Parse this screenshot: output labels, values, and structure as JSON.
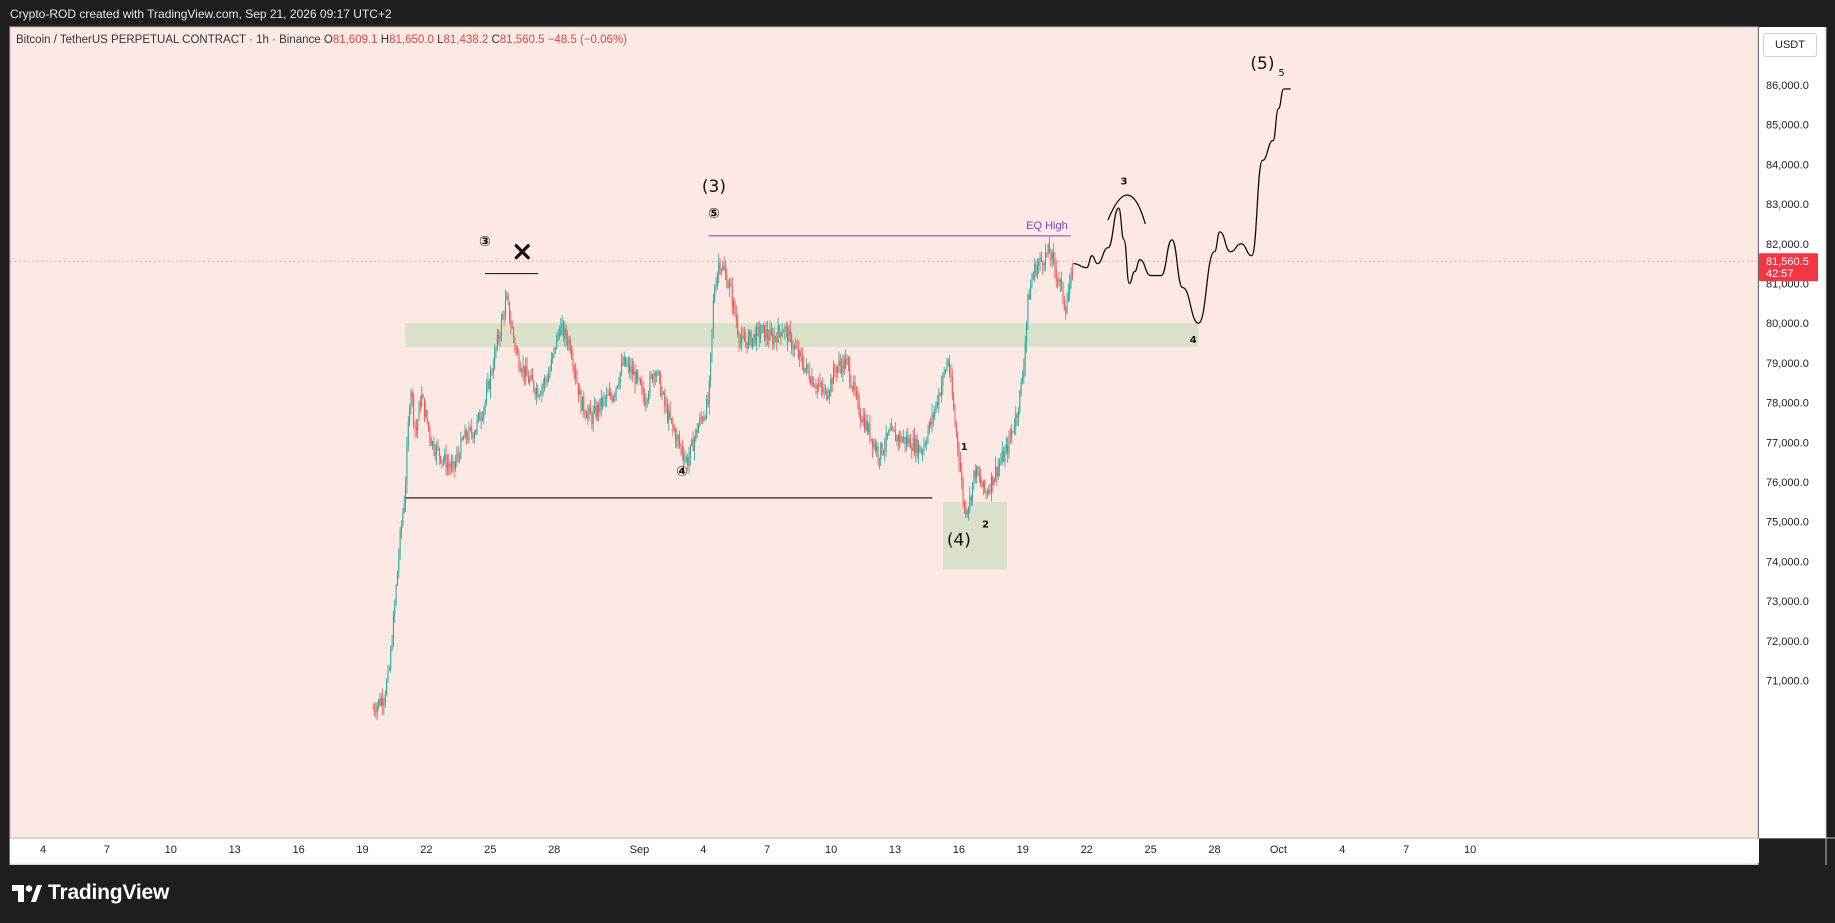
{
  "header": {
    "credit": "Crypto-ROD created with TradingView.com, Sep 21, 2026 09:17 UTC+2"
  },
  "legend": {
    "symbol": "Bitcoin / TetherUS PERPETUAL CONTRACT · 1h · Binance",
    "open_label": "O",
    "open": "81,609.1",
    "high_label": "H",
    "high": "81,650.0",
    "low_label": "L",
    "low": "81,438.2",
    "close_label": "C",
    "close": "81,560.5",
    "change": "−48.5 (−0.06%)"
  },
  "currency_button": "USDT",
  "price_tag": {
    "price": "81,560.5",
    "countdown": "42:57"
  },
  "footer": {
    "brand": "TradingView"
  },
  "colors": {
    "background": "#fde9e4",
    "candle_up": "#26a69a",
    "candle_down": "#ef5350",
    "zone": "#d6e0c8",
    "eq_line": "#7b3fc0",
    "price_tag": "#f23645"
  },
  "chart_data": {
    "type": "candlestick",
    "timeframe": "1h",
    "x_tick_labels": [
      "4",
      "7",
      "10",
      "13",
      "16",
      "19",
      "22",
      "25",
      "28",
      "Sep",
      "4",
      "7",
      "10",
      "13",
      "16",
      "19",
      "22",
      "25",
      "28",
      "Oct",
      "4",
      "7",
      "10"
    ],
    "x_axis_dates": [
      "2026-08-04",
      "2026-08-07",
      "2026-08-10",
      "2026-08-13",
      "2026-08-16",
      "2026-08-19",
      "2026-08-22",
      "2026-08-25",
      "2026-08-28",
      "2026-09-01",
      "2026-09-04",
      "2026-09-07",
      "2026-09-10",
      "2026-09-13",
      "2026-09-16",
      "2026-09-19",
      "2026-09-22",
      "2026-09-25",
      "2026-09-28",
      "2026-10-01",
      "2026-10-04",
      "2026-10-07",
      "2026-10-10"
    ],
    "y_tick_labels": [
      "71,000.0",
      "72,000.0",
      "73,000.0",
      "74,000.0",
      "75,000.0",
      "76,000.0",
      "77,000.0",
      "78,000.0",
      "79,000.0",
      "80,000.0",
      "81,000.0",
      "82,000.0",
      "83,000.0",
      "84,000.0",
      "85,000.0",
      "86,000.0"
    ],
    "ylim": [
      70300,
      87600
    ],
    "price_path": [
      [
        "2026-08-19 12:00",
        70300
      ],
      [
        "2026-08-20 00:00",
        70600
      ],
      [
        "2026-08-20 06:00",
        71200
      ],
      [
        "2026-08-20 12:00",
        72800
      ],
      [
        "2026-08-20 18:00",
        74500
      ],
      [
        "2026-08-21 00:00",
        75800
      ],
      [
        "2026-08-21 06:00",
        78500
      ],
      [
        "2026-08-21 12:00",
        77200
      ],
      [
        "2026-08-21 18:00",
        78200
      ],
      [
        "2026-08-22 06:00",
        77000
      ],
      [
        "2026-08-22 18:00",
        76600
      ],
      [
        "2026-08-23 06:00",
        76300
      ],
      [
        "2026-08-23 18:00",
        77100
      ],
      [
        "2026-08-24 06:00",
        77300
      ],
      [
        "2026-08-24 18:00",
        78000
      ],
      [
        "2026-08-25 06:00",
        79300
      ],
      [
        "2026-08-25 18:00",
        80600
      ],
      [
        "2026-08-26 06:00",
        79200
      ],
      [
        "2026-08-26 18:00",
        78600
      ],
      [
        "2026-08-27 06:00",
        78300
      ],
      [
        "2026-08-27 18:00",
        78700
      ],
      [
        "2026-08-28 06:00",
        79900
      ],
      [
        "2026-08-28 18:00",
        79500
      ],
      [
        "2026-08-29 06:00",
        78000
      ],
      [
        "2026-08-29 18:00",
        77600
      ],
      [
        "2026-08-30 06:00",
        78000
      ],
      [
        "2026-08-30 18:00",
        78200
      ],
      [
        "2026-08-31 06:00",
        79000
      ],
      [
        "2026-08-31 18:00",
        78700
      ],
      [
        "2026-09-01 06:00",
        78100
      ],
      [
        "2026-09-01 18:00",
        78900
      ],
      [
        "2026-09-02 06:00",
        77800
      ],
      [
        "2026-09-02 18:00",
        77100
      ],
      [
        "2026-09-03 06:00",
        76500
      ],
      [
        "2026-09-03 18:00",
        77400
      ],
      [
        "2026-09-04 06:00",
        78000
      ],
      [
        "2026-09-04 12:00",
        80800
      ],
      [
        "2026-09-04 18:00",
        81600
      ],
      [
        "2026-09-05 06:00",
        80900
      ],
      [
        "2026-09-05 18:00",
        79500
      ],
      [
        "2026-09-06 06:00",
        79600
      ],
      [
        "2026-09-06 18:00",
        79800
      ],
      [
        "2026-09-07 06:00",
        79600
      ],
      [
        "2026-09-07 18:00",
        79900
      ],
      [
        "2026-09-08 06:00",
        79400
      ],
      [
        "2026-09-08 18:00",
        78900
      ],
      [
        "2026-09-09 06:00",
        78500
      ],
      [
        "2026-09-09 18:00",
        78200
      ],
      [
        "2026-09-10 06:00",
        78900
      ],
      [
        "2026-09-10 18:00",
        79000
      ],
      [
        "2026-09-11 06:00",
        77900
      ],
      [
        "2026-09-11 18:00",
        77300
      ],
      [
        "2026-09-12 06:00",
        76700
      ],
      [
        "2026-09-12 18:00",
        77200
      ],
      [
        "2026-09-13 06:00",
        77100
      ],
      [
        "2026-09-13 18:00",
        77000
      ],
      [
        "2026-09-14 06:00",
        76800
      ],
      [
        "2026-09-14 18:00",
        77600
      ],
      [
        "2026-09-15 06:00",
        78600
      ],
      [
        "2026-09-15 12:00",
        79100
      ],
      [
        "2026-09-15 18:00",
        77800
      ],
      [
        "2026-09-16 00:00",
        76700
      ],
      [
        "2026-09-16 06:00",
        75300
      ],
      [
        "2026-09-16 12:00",
        75500
      ],
      [
        "2026-09-16 18:00",
        76300
      ],
      [
        "2026-09-17 06:00",
        75700
      ],
      [
        "2026-09-17 18:00",
        76300
      ],
      [
        "2026-09-18 06:00",
        76800
      ],
      [
        "2026-09-18 18:00",
        77800
      ],
      [
        "2026-09-19 00:00",
        78700
      ],
      [
        "2026-09-19 06:00",
        80600
      ],
      [
        "2026-09-19 12:00",
        81300
      ],
      [
        "2026-09-19 18:00",
        81500
      ],
      [
        "2026-09-20 06:00",
        81800
      ],
      [
        "2026-09-20 18:00",
        81000
      ],
      [
        "2026-09-21 00:00",
        80400
      ],
      [
        "2026-09-21 06:00",
        81000
      ],
      [
        "2026-09-21 09:00",
        81560
      ]
    ],
    "current_price": 81560.5,
    "annotations": {
      "wave_labels": [
        {
          "text": "③",
          "date": "2026-08-24 18:00",
          "price": 81950,
          "circled": true
        },
        {
          "text": "(3)",
          "date": "2026-09-04 12:00",
          "price": 83300
        },
        {
          "text": "⑤",
          "date": "2026-09-04 12:00",
          "price": 82650,
          "circled": true
        },
        {
          "text": "④",
          "date": "2026-09-03 00:00",
          "price": 76150,
          "circled": true
        },
        {
          "text": "1",
          "date": "2026-09-16 06:00",
          "price": 76800
        },
        {
          "text": "2",
          "date": "2026-09-17 06:00",
          "price": 74850
        },
        {
          "text": "(4)",
          "date": "2026-09-16 00:00",
          "price": 74400
        },
        {
          "text": "3",
          "date": "2026-09-23 18:00",
          "price": 83500
        },
        {
          "text": "4",
          "date": "2026-09-27 00:00",
          "price": 79500
        },
        {
          "text": "(5)",
          "date": "2026-09-30 06:00",
          "price": 86400
        }
      ],
      "eq_high": {
        "label": "EQ High",
        "price": 82200,
        "from": "2026-09-04 06:00",
        "to": "2026-09-21 06:00"
      },
      "lines": [
        {
          "price": 81250,
          "from": "2026-08-24 18:00",
          "to": "2026-08-27 06:00"
        },
        {
          "price": 75600,
          "from": "2026-08-21 00:00",
          "to": "2026-09-14 18:00"
        }
      ],
      "zones": [
        {
          "price_from": 79400,
          "price_to": 80000,
          "from": "2026-08-21 00:00",
          "to": "2026-09-27 06:00"
        },
        {
          "price_from": 73800,
          "price_to": 75500,
          "from": "2026-09-15 06:00",
          "to": "2026-09-18 06:00"
        }
      ],
      "cross_marker": {
        "date": "2026-08-26 12:00",
        "price": 81800
      },
      "projection_path": [
        [
          "2026-09-21 09:00",
          81500
        ],
        [
          "2026-09-22 00:00",
          81400
        ],
        [
          "2026-09-22 06:00",
          81700
        ],
        [
          "2026-09-22 12:00",
          81500
        ],
        [
          "2026-09-23 00:00",
          81900
        ],
        [
          "2026-09-23 12:00",
          82900
        ],
        [
          "2026-09-23 18:00",
          82100
        ],
        [
          "2026-09-24 00:00",
          81000
        ],
        [
          "2026-09-24 06:00",
          81300
        ],
        [
          "2026-09-24 12:00",
          81600
        ],
        [
          "2026-09-25 00:00",
          81200
        ],
        [
          "2026-09-25 12:00",
          81200
        ],
        [
          "2026-09-26 00:00",
          82100
        ],
        [
          "2026-09-26 12:00",
          80900
        ],
        [
          "2026-09-27 06:00",
          80000
        ],
        [
          "2026-09-28 00:00",
          81800
        ],
        [
          "2026-09-28 06:00",
          82300
        ],
        [
          "2026-09-28 18:00",
          81800
        ],
        [
          "2026-09-29 06:00",
          82000
        ],
        [
          "2026-09-29 18:00",
          81700
        ],
        [
          "2026-09-30 06:00",
          84100
        ],
        [
          "2026-09-30 18:00",
          84600
        ],
        [
          "2026-10-01 00:00",
          85400
        ],
        [
          "2026-10-01 06:00",
          85900
        ]
      ],
      "projection_arc": [
        [
          "2026-09-23 00:00",
          82600
        ],
        [
          "2026-09-24 00:00",
          83200
        ],
        [
          "2026-09-24 18:00",
          82500
        ]
      ]
    }
  }
}
